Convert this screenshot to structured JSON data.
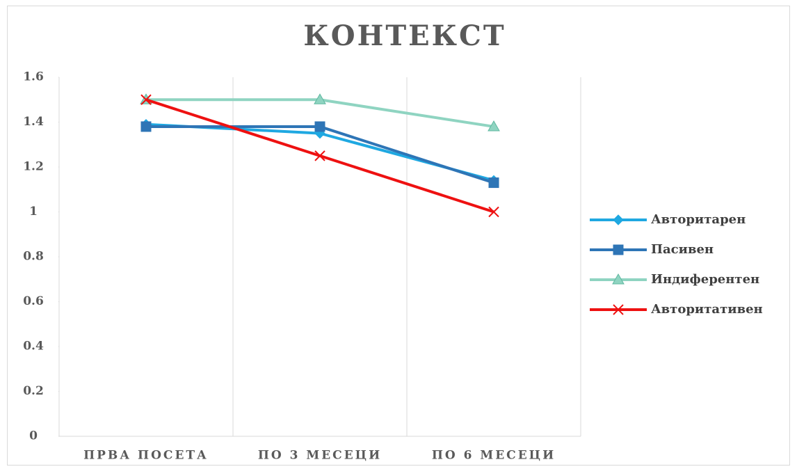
{
  "chart_data": {
    "type": "line",
    "title": "КОНТЕКСТ",
    "categories": [
      "ПРВА ПОСЕТА",
      "ПО 3 МЕСЕЦИ",
      "ПО 6 МЕСЕЦИ"
    ],
    "series": [
      {
        "name": "Авторитарен",
        "color": "#1fa8e1",
        "marker": "diamond",
        "values": [
          1.39,
          1.35,
          1.14
        ]
      },
      {
        "name": "Пасивен",
        "color": "#2e75b6",
        "marker": "square",
        "values": [
          1.38,
          1.38,
          1.13
        ]
      },
      {
        "name": "Индиферентен",
        "color": "#8fd4c1",
        "marker": "triangle",
        "values": [
          1.5,
          1.5,
          1.38
        ]
      },
      {
        "name": "Авторитативен",
        "color": "#ee1111",
        "marker": "x",
        "values": [
          1.5,
          1.25,
          1.0
        ]
      }
    ],
    "ylim": [
      0,
      1.6
    ],
    "yticks": [
      0,
      0.2,
      0.4,
      0.6,
      0.8,
      1,
      1.2,
      1.4,
      1.6
    ],
    "legend": "right"
  }
}
